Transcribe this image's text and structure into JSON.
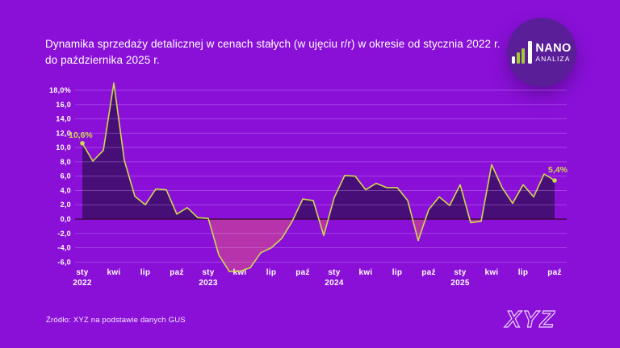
{
  "page": {
    "background": "#8a10d8"
  },
  "header": {
    "title_line1": "Dynamika sprzedaży detalicznej w cenach stałych (w ujęciu r/r) w okresie od stycznia 2022 r.",
    "title_line2": "do października 2025 r."
  },
  "logo": {
    "top": "NANO",
    "bottom": "ANALIZA",
    "circle_color": "#5a1e99",
    "bar_green": "#a4cb2e",
    "bar_white": "#ffffff"
  },
  "annotations": {
    "first_point_label": "10,6%",
    "last_point_label": "5,4%"
  },
  "footer": {
    "source": "Źródło: XYZ na podstawie danych GUS",
    "brand": "XYZ"
  },
  "chart_data": {
    "type": "area",
    "title": "Dynamika sprzedaży detalicznej w cenach stałych (w ujęciu r/r), sty 2022 – paź 2025",
    "unit": "%",
    "ylabel": "",
    "xlabel": "",
    "ylim": [
      -6,
      18
    ],
    "ytick_step": 2,
    "grid": true,
    "legend_position": "none",
    "ytick_labels": [
      "18,0%",
      "16,0",
      "14,0",
      "12,0",
      "10,0",
      "8,0",
      "6,0",
      "4,0",
      "2,0",
      "0,0",
      "-2,0",
      "-4,0",
      "-6,0"
    ],
    "xticks": [
      {
        "index": 0,
        "month": "sty",
        "year": "2022"
      },
      {
        "index": 3,
        "month": "kwi",
        "year": ""
      },
      {
        "index": 6,
        "month": "lip",
        "year": ""
      },
      {
        "index": 9,
        "month": "paź",
        "year": ""
      },
      {
        "index": 12,
        "month": "sty",
        "year": "2023"
      },
      {
        "index": 15,
        "month": "kwi",
        "year": ""
      },
      {
        "index": 18,
        "month": "lip",
        "year": ""
      },
      {
        "index": 21,
        "month": "paź",
        "year": ""
      },
      {
        "index": 24,
        "month": "sty",
        "year": "2024"
      },
      {
        "index": 27,
        "month": "kwi",
        "year": ""
      },
      {
        "index": 30,
        "month": "lip",
        "year": ""
      },
      {
        "index": 33,
        "month": "paź",
        "year": ""
      },
      {
        "index": 36,
        "month": "sty",
        "year": "2025"
      },
      {
        "index": 39,
        "month": "kwi",
        "year": ""
      },
      {
        "index": 42,
        "month": "lip",
        "year": ""
      },
      {
        "index": 45,
        "month": "paź",
        "year": ""
      }
    ],
    "series": [
      {
        "name": "Sprzedaż detaliczna r/r (%), ceny stałe",
        "start_month": "sty 2022",
        "end_month": "paź 2025",
        "values": [
          10.6,
          8.1,
          9.6,
          19.0,
          8.2,
          3.2,
          2.0,
          4.2,
          4.1,
          0.7,
          1.6,
          0.2,
          0.1,
          -5.0,
          -7.3,
          -7.3,
          -6.8,
          -4.7,
          -4.0,
          -2.7,
          -0.3,
          2.8,
          2.6,
          -2.3,
          3.0,
          6.1,
          6.0,
          4.1,
          5.0,
          4.4,
          4.4,
          2.6,
          -3.0,
          1.3,
          3.1,
          1.9,
          4.8,
          -0.5,
          -0.3,
          7.6,
          4.4,
          2.2,
          4.8,
          3.1,
          6.3,
          5.4
        ]
      }
    ],
    "colors": {
      "line": "#cdd94e",
      "area_positive": "#470e77",
      "area_negative": "#b733ab",
      "grid": "#d9aaff",
      "zero_line": "#32082e",
      "tick_label": "#ffffff"
    }
  }
}
